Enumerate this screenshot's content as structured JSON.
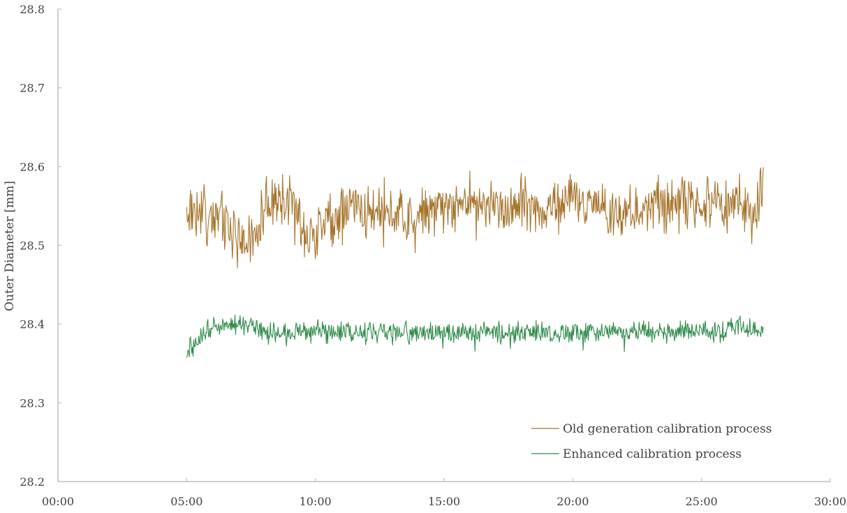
{
  "chart_data": {
    "type": "line",
    "title": "",
    "xlabel": "",
    "ylabel": "Outer Diameter [mm]",
    "xlim": [
      "00:00",
      "30:00"
    ],
    "ylim": [
      28.2,
      28.8
    ],
    "x_ticks": [
      "00:00",
      "05:00",
      "10:00",
      "15:00",
      "20:00",
      "25:00",
      "30:00"
    ],
    "y_ticks": [
      "28.2",
      "28.3",
      "28.4",
      "28.5",
      "28.6",
      "28.7",
      "28.8"
    ],
    "grid": false,
    "legend_position": "lower-right",
    "x_unit": "minutes (mm:ss)",
    "x": [
      5.0,
      5.5,
      6.0,
      6.5,
      7.0,
      7.5,
      8.0,
      8.5,
      9.0,
      9.5,
      10.0,
      10.5,
      11.0,
      11.5,
      12.0,
      12.5,
      13.0,
      13.5,
      14.0,
      14.5,
      15.0,
      15.5,
      16.0,
      16.5,
      17.0,
      17.5,
      18.0,
      18.5,
      19.0,
      19.5,
      20.0,
      20.5,
      21.0,
      21.5,
      22.0,
      22.5,
      23.0,
      23.5,
      24.0,
      24.5,
      25.0,
      25.5,
      26.0,
      26.5,
      27.0,
      27.4
    ],
    "series": [
      {
        "name": "Old generation calibration process",
        "color": "#a5732a",
        "values": [
          28.54,
          28.55,
          28.54,
          28.53,
          28.51,
          28.5,
          28.55,
          28.56,
          28.56,
          28.52,
          28.52,
          28.53,
          28.54,
          28.55,
          28.54,
          28.55,
          28.54,
          28.53,
          28.54,
          28.55,
          28.55,
          28.55,
          28.56,
          28.55,
          28.55,
          28.55,
          28.56,
          28.55,
          28.54,
          28.55,
          28.56,
          28.55,
          28.55,
          28.54,
          28.54,
          28.55,
          28.55,
          28.55,
          28.56,
          28.56,
          28.55,
          28.56,
          28.55,
          28.56,
          28.53,
          28.58
        ],
        "min": 28.463,
        "max": 28.616
      },
      {
        "name": "Enhanced calibration process",
        "color": "#2e8b4a",
        "values": [
          28.37,
          28.38,
          28.4,
          28.4,
          28.4,
          28.4,
          28.39,
          28.39,
          28.39,
          28.39,
          28.39,
          28.39,
          28.39,
          28.39,
          28.39,
          28.39,
          28.39,
          28.39,
          28.39,
          28.39,
          28.39,
          28.39,
          28.39,
          28.39,
          28.39,
          28.39,
          28.39,
          28.39,
          28.39,
          28.39,
          28.39,
          28.39,
          28.39,
          28.39,
          28.39,
          28.39,
          28.39,
          28.39,
          28.39,
          28.39,
          28.39,
          28.39,
          28.39,
          28.4,
          28.39,
          28.39
        ],
        "min": 28.353,
        "max": 28.43
      }
    ]
  },
  "legend": {
    "items": [
      {
        "label": "Old generation calibration process",
        "color": "#a5732a"
      },
      {
        "label": "Enhanced calibration process",
        "color": "#2e8b4a"
      }
    ]
  },
  "noise": {
    "old_amplitude": 0.028,
    "enhanced_amplitude": 0.011,
    "points_per_minute": 40
  }
}
